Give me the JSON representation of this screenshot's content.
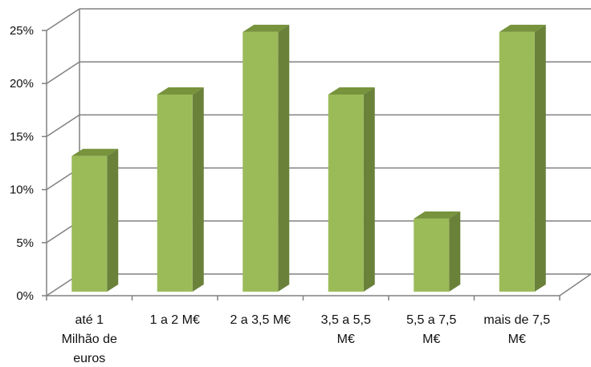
{
  "chart_data": {
    "type": "bar",
    "categories": [
      "até  1 Milhão de euros",
      "1 a 2 M€",
      "2 a 3,5 M€",
      "3,5 a 5,5 M€",
      "5,5 a 7,5 M€",
      "mais de 7,5 M€"
    ],
    "category_lines": [
      [
        "até  1",
        "Milhão de",
        "euros"
      ],
      [
        "1 a 2 M€"
      ],
      [
        "2 a 3,5 M€"
      ],
      [
        "3,5 a 5,5",
        "M€"
      ],
      [
        "5,5 a 7,5",
        "M€"
      ],
      [
        "mais de 7,5",
        "M€"
      ]
    ],
    "values": [
      0.118,
      0.176,
      0.235,
      0.176,
      0.059,
      0.235
    ],
    "yticks": [
      "0%",
      "5%",
      "10%",
      "15%",
      "20%",
      "25%"
    ],
    "ylim": [
      0,
      0.25
    ],
    "grid": true,
    "legend": "none",
    "style": "3d-column",
    "colors": {
      "bar_front": "#9bbb59",
      "bar_side": "#6a813a",
      "bar_top": "#77933c",
      "grid": "#808080",
      "axis": "#808080"
    }
  }
}
